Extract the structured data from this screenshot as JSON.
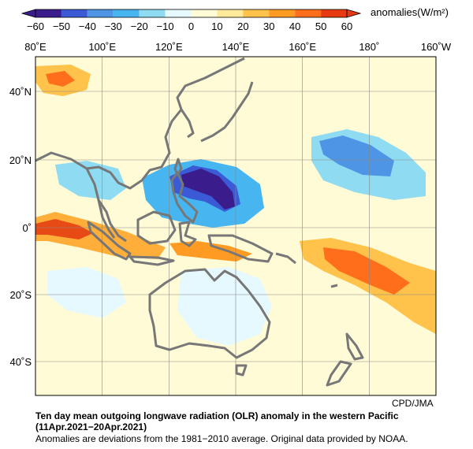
{
  "colorbar": {
    "unit_label": "anomalies(W/m²)",
    "ticks": [
      "−60",
      "−50",
      "−40",
      "−30",
      "−20",
      "−10",
      "0",
      "10",
      "20",
      "30",
      "40",
      "50",
      "60"
    ],
    "colors": [
      "#3a1c8c",
      "#3b5bd6",
      "#4f95e6",
      "#47b6f0",
      "#8fdcf2",
      "#e6f9ff",
      "#fffbd6",
      "#ffea9c",
      "#ffc24a",
      "#ff9a22",
      "#ff6e1a",
      "#e83a12"
    ]
  },
  "map": {
    "lon_labels": [
      "80˚E",
      "100˚E",
      "120˚E",
      "140˚E",
      "160˚E",
      "180˚",
      "160˚W"
    ],
    "lat_labels": [
      "40˚N",
      "20˚N",
      "0˚",
      "20˚S",
      "40˚S"
    ],
    "background": "#fffbd6",
    "grid_color": "#888888",
    "land_color": "#777777"
  },
  "credit": "CPD/JMA",
  "caption": {
    "title": "Ten day mean outgoing longwave radiation (OLR) anomaly in the western Pacific",
    "period": "(11Apr.2021−20Apr.2021)",
    "note": "Anomalies are deviations from the 1981−2010 average. Original data provided by NOAA."
  }
}
